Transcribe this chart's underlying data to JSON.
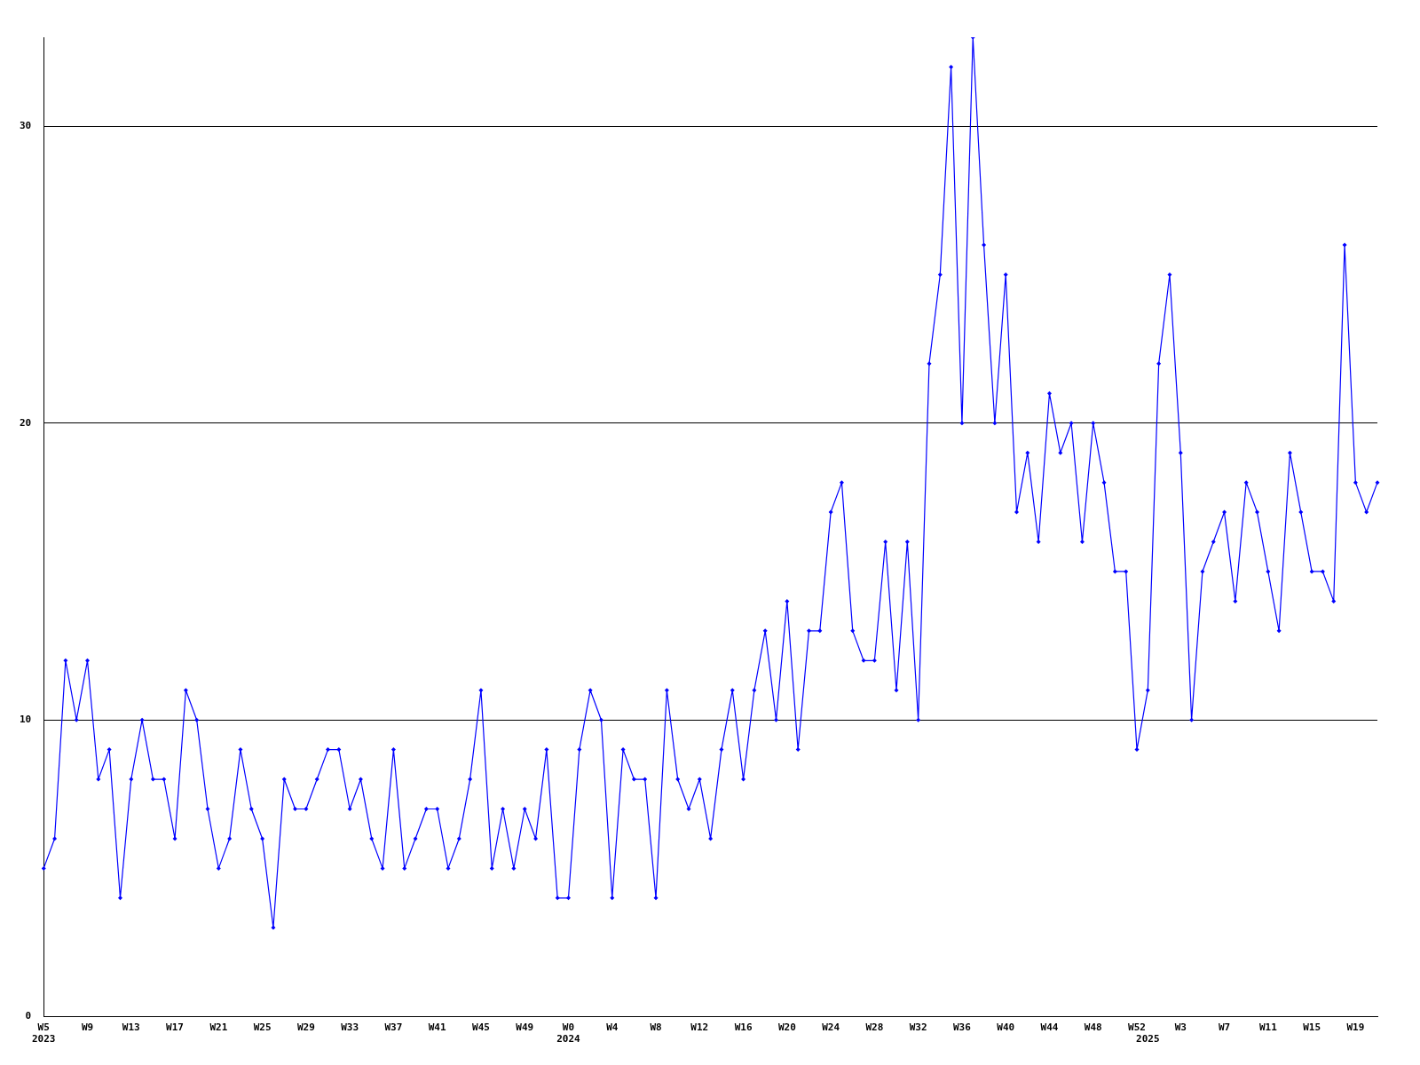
{
  "chart_data": {
    "type": "line",
    "categories": [
      "W5\n2023",
      null,
      null,
      null,
      "W9",
      null,
      null,
      null,
      "W13",
      null,
      null,
      null,
      "W17",
      null,
      null,
      null,
      "W21",
      null,
      null,
      null,
      "W25",
      null,
      null,
      null,
      "W29",
      null,
      null,
      null,
      "W33",
      null,
      null,
      null,
      "W37",
      null,
      null,
      null,
      "W41",
      null,
      null,
      null,
      "W45",
      null,
      null,
      null,
      "W49",
      null,
      null,
      null,
      "W0\n2024",
      null,
      null,
      null,
      "W4",
      null,
      null,
      null,
      "W8",
      null,
      null,
      null,
      "W12",
      null,
      null,
      null,
      "W16",
      null,
      null,
      null,
      "W20",
      null,
      null,
      null,
      "W24",
      null,
      null,
      null,
      "W28",
      null,
      null,
      null,
      "W32",
      null,
      null,
      null,
      "W36",
      null,
      null,
      null,
      "W40",
      null,
      null,
      null,
      "W44",
      null,
      null,
      null,
      "W48",
      null,
      null,
      null,
      "W52",
      "\n2025",
      null,
      null,
      "W3",
      null,
      null,
      null,
      "W7",
      null,
      null,
      null,
      "W11",
      null,
      null,
      null,
      "W15",
      null,
      null,
      null,
      "W19",
      null,
      null
    ],
    "series": [
      {
        "color": "#0000ff",
        "values": [
          5,
          6,
          12,
          10,
          12,
          8,
          9,
          4,
          8,
          10,
          8,
          8,
          6,
          11,
          10,
          7,
          5,
          6,
          9,
          7,
          6,
          3,
          8,
          7,
          7,
          8,
          9,
          9,
          7,
          8,
          6,
          5,
          9,
          5,
          6,
          7,
          7,
          5,
          6,
          8,
          11,
          5,
          7,
          5,
          7,
          6,
          9,
          4,
          4,
          9,
          11,
          10,
          4,
          9,
          8,
          8,
          4,
          11,
          8,
          7,
          8,
          6,
          9,
          11,
          8,
          11,
          13,
          10,
          14,
          9,
          13,
          13,
          17,
          18,
          13,
          12,
          12,
          16,
          11,
          16,
          10,
          22,
          25,
          32,
          20,
          33,
          26,
          20,
          25,
          17,
          19,
          16,
          21,
          19,
          20,
          16,
          20,
          18,
          15,
          15,
          9,
          11,
          22,
          25,
          19,
          10,
          15,
          16,
          17,
          14,
          18,
          17,
          15,
          13,
          19,
          17,
          15,
          15,
          14,
          26,
          18,
          17,
          18
        ]
      }
    ],
    "ylim": [
      0,
      33
    ],
    "yticks": [
      0,
      10,
      20,
      30
    ],
    "grid": "y",
    "legend": false,
    "marker": "diamond",
    "line_style": "solid"
  }
}
